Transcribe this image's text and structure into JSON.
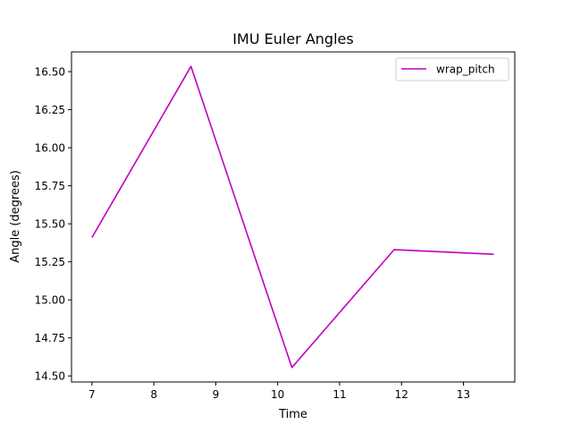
{
  "chart_data": {
    "type": "line",
    "title": "IMU Euler Angles",
    "xlabel": "Time",
    "ylabel": "Angle (degrees)",
    "xlim": [
      6.67,
      13.83
    ],
    "ylim": [
      14.46,
      16.63
    ],
    "xticks": [
      7,
      8,
      9,
      10,
      11,
      12,
      13
    ],
    "yticks": [
      14.5,
      14.75,
      15.0,
      15.25,
      15.5,
      15.75,
      16.0,
      16.25,
      16.5
    ],
    "ytick_labels": [
      "14.50",
      "14.75",
      "15.00",
      "15.25",
      "15.50",
      "15.75",
      "16.00",
      "16.25",
      "16.50"
    ],
    "grid": false,
    "legend": "top-right",
    "series": [
      {
        "name": "wrap_pitch",
        "color": "#bf00bf",
        "x": [
          7.0,
          8.6,
          10.23,
          11.88,
          13.49
        ],
        "y": [
          15.41,
          16.535,
          14.555,
          15.33,
          15.3
        ]
      }
    ]
  }
}
